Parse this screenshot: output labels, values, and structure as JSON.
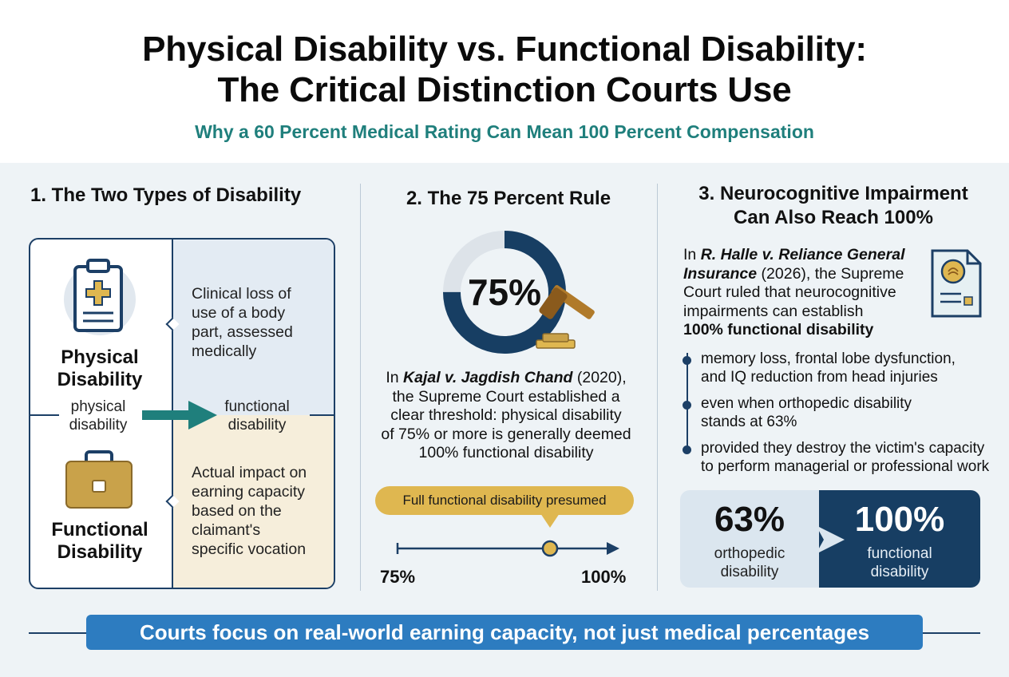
{
  "header": {
    "title_line1": "Physical Disability vs. Functional Disability:",
    "title_line2": "The Critical Distinction Courts Use",
    "subtitle": "Why a 60 Percent Medical Rating Can Mean 100 Percent Compensation"
  },
  "colors": {
    "navy": "#1c3f66",
    "teal": "#1f7f7c",
    "gold": "#dfb750",
    "banner_blue": "#2d7cc0",
    "background": "#eef3f6"
  },
  "section1": {
    "title": "1. The Two Types of Disability",
    "physical": {
      "icon": "clipboard-medical-icon",
      "label_line1": "Physical",
      "label_line2": "Disability",
      "desc_lines": [
        "Clinical loss of",
        "use of a body",
        "part, assessed",
        "medically"
      ]
    },
    "transition": {
      "icon": "arrow-right-icon",
      "from_line1": "physical",
      "from_line2": "disability",
      "to_line1": "functional",
      "to_line2": "disability"
    },
    "functional": {
      "icon": "briefcase-icon",
      "label_line1": "Functional",
      "label_line2": "Disability",
      "desc_lines": [
        "Actual impact on",
        "earning capacity",
        "based on the",
        "claimant's",
        "specific vocation"
      ]
    }
  },
  "section2": {
    "title": "2. The 75 Percent Rule",
    "donut_label": "75%",
    "donut_fraction": 0.75,
    "gavel_icon": "gavel-icon",
    "case_prefix": "In ",
    "case_name": "Kajal v. Jagdish Chand",
    "case_rest_line1": " (2020),",
    "case_lines": [
      "the Supreme Court established a",
      "clear threshold: physical disability",
      "of 75% or more is generally deemed",
      "100% functional disability"
    ],
    "callout": "Full functional disability presumed",
    "scale_start": "75%",
    "scale_end": "100%"
  },
  "section3": {
    "title_line1": "3. Neurocognitive Impairment",
    "title_line2": "Can Also Reach 100%",
    "doc_icon": "brain-document-icon",
    "case_prefix": "In ",
    "case_name_line1": "R. Halle v. Reliance General",
    "case_name_line2": "Insurance",
    "case_rest_line2": " (2026), the Supreme",
    "case_line3": "Court ruled that neurocognitive",
    "case_line4": "impairments can establish",
    "case_bold_line5": "100% functional disability",
    "bullets": [
      {
        "line1": "memory loss, frontal lobe dysfunction,",
        "line2": "and IQ reduction from head injuries"
      },
      {
        "line1": "even when orthopedic disability",
        "line2": "stands at 63%"
      },
      {
        "line1": "provided they destroy the victim's capacity",
        "line2": "to perform managerial or professional work"
      }
    ],
    "comparison": {
      "left_value": "63%",
      "left_label_line1": "orthopedic",
      "left_label_line2": "disability",
      "right_value": "100%",
      "right_label_line1": "functional",
      "right_label_line2": "disability"
    }
  },
  "footer": {
    "banner": "Courts focus on real-world earning capacity, not just medical percentages"
  }
}
